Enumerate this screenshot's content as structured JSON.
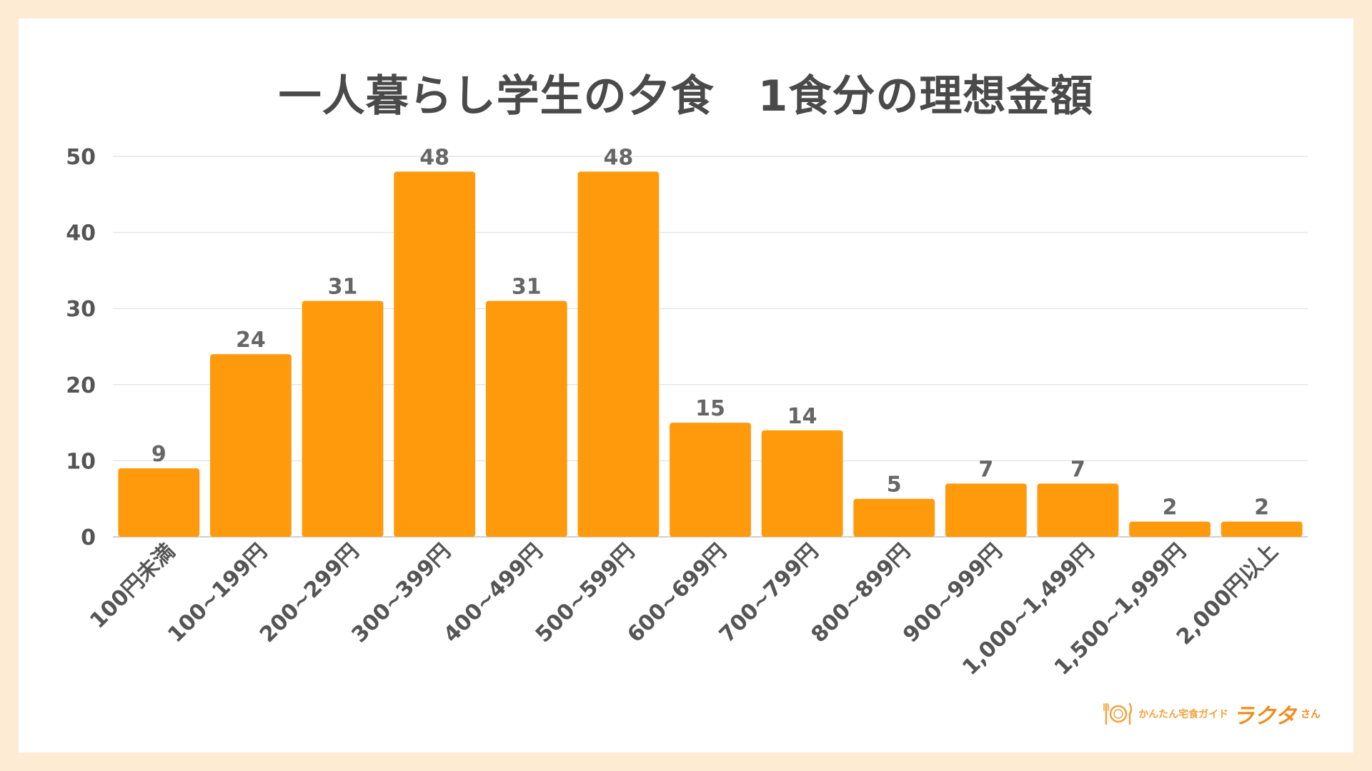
{
  "chart_data": {
    "type": "bar",
    "title": "一人暮らし学生の夕食　1食分の理想金額",
    "categories": [
      "100円未満",
      "100~199円",
      "200~299円",
      "300~399円",
      "400~499円",
      "500~599円",
      "600~699円",
      "700~799円",
      "800~899円",
      "900~999円",
      "1,000~1,499円",
      "1,500~1,999円",
      "2,000円以上"
    ],
    "values": [
      9,
      24,
      31,
      48,
      31,
      48,
      15,
      14,
      5,
      7,
      7,
      2,
      2
    ],
    "ylim": [
      0,
      50
    ],
    "yticks": [
      0,
      10,
      20,
      30,
      40,
      50
    ],
    "grid": true,
    "bar_color": "#ff9a0d",
    "data_labels": true
  },
  "branding": {
    "sub_text": "かんたん宅食ガイド",
    "main_text": "ラクタ",
    "suffix_text": "さん",
    "icon": "plate-cutlery-icon",
    "accent_color": "#f28c1e"
  }
}
